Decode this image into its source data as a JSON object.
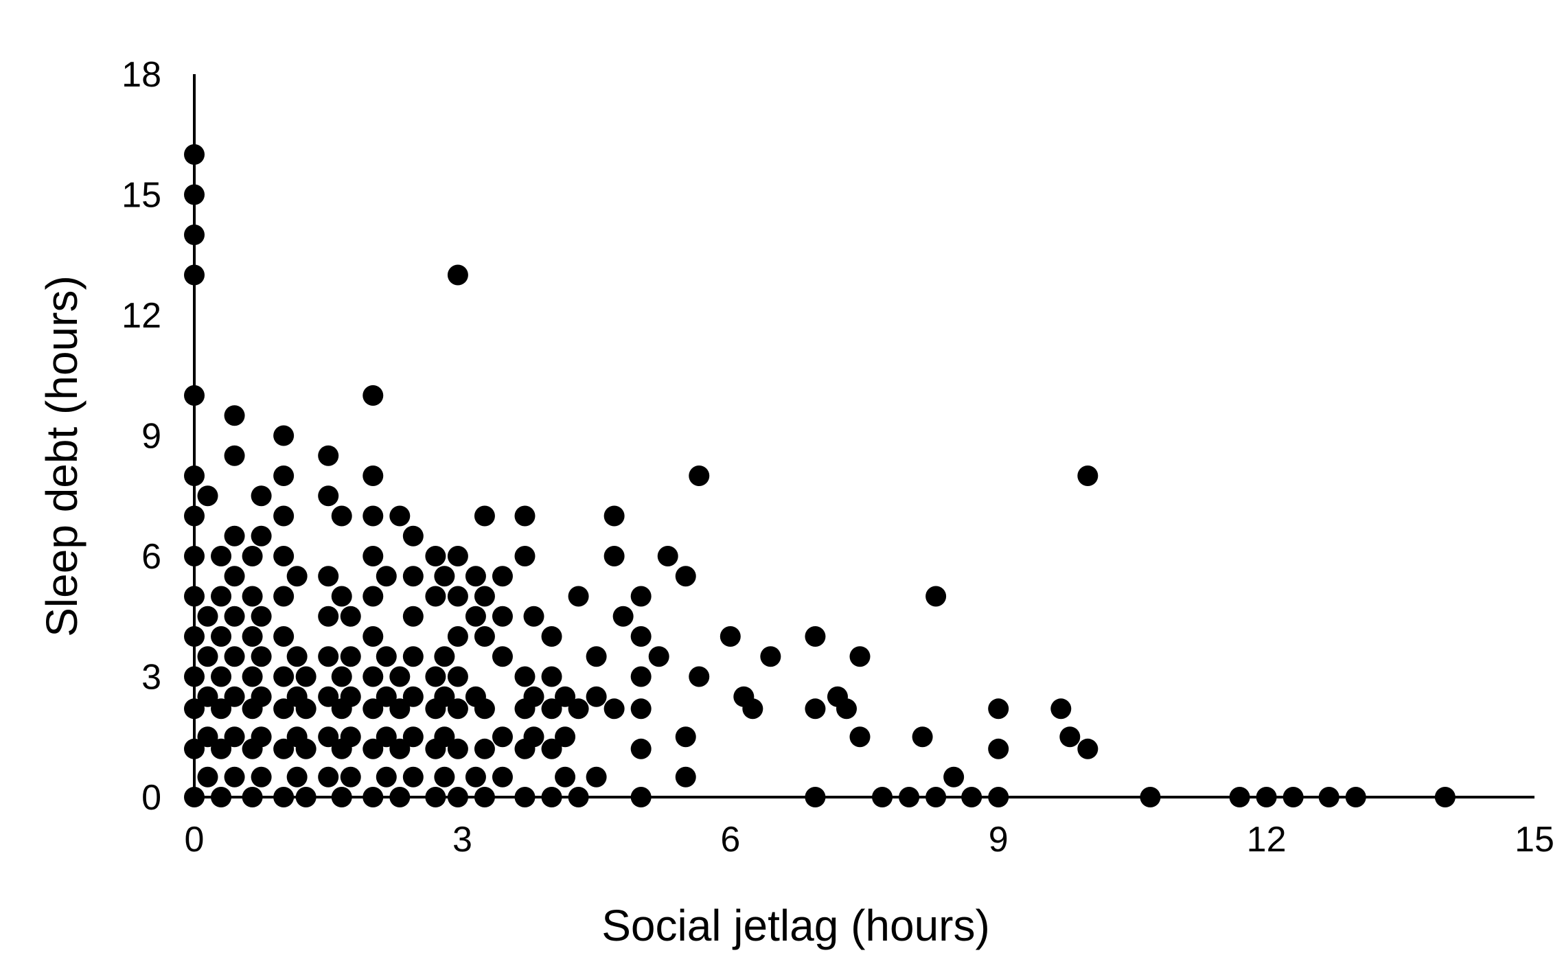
{
  "chart_data": {
    "type": "scatter",
    "title": "",
    "xlabel": "Social jetlag (hours)",
    "ylabel": "Sleep debt (hours)",
    "xlim": [
      0,
      15
    ],
    "ylim": [
      0,
      18
    ],
    "xticks": [
      "0",
      "3",
      "6",
      "9",
      "12",
      "15"
    ],
    "yticks": [
      "0",
      "3",
      "6",
      "9",
      "12",
      "15",
      "18"
    ],
    "grid": false,
    "legend": "none",
    "marker_color": "#000000",
    "points": [
      [
        0,
        16
      ],
      [
        0,
        15
      ],
      [
        0,
        14
      ],
      [
        0,
        13
      ],
      [
        0,
        10
      ],
      [
        0,
        8
      ],
      [
        0,
        7
      ],
      [
        0,
        6
      ],
      [
        0,
        5
      ],
      [
        0,
        4
      ],
      [
        0,
        3
      ],
      [
        0,
        2.2
      ],
      [
        0,
        1.2
      ],
      [
        0,
        0
      ],
      [
        0.15,
        7.5
      ],
      [
        0.15,
        4.5
      ],
      [
        0.15,
        3.5
      ],
      [
        0.15,
        2.5
      ],
      [
        0.15,
        1.5
      ],
      [
        0.15,
        0.5
      ],
      [
        0.3,
        6
      ],
      [
        0.3,
        5
      ],
      [
        0.3,
        4
      ],
      [
        0.3,
        3
      ],
      [
        0.3,
        2.2
      ],
      [
        0.3,
        1.2
      ],
      [
        0.3,
        0
      ],
      [
        0.45,
        9.5
      ],
      [
        0.45,
        8.5
      ],
      [
        0.45,
        6.5
      ],
      [
        0.45,
        5.5
      ],
      [
        0.45,
        4.5
      ],
      [
        0.45,
        3.5
      ],
      [
        0.45,
        2.5
      ],
      [
        0.45,
        1.5
      ],
      [
        0.45,
        0.5
      ],
      [
        0.65,
        6
      ],
      [
        0.65,
        5
      ],
      [
        0.65,
        4
      ],
      [
        0.65,
        3
      ],
      [
        0.65,
        2.2
      ],
      [
        0.65,
        1.2
      ],
      [
        0.65,
        0
      ],
      [
        0.75,
        7.5
      ],
      [
        0.75,
        6.5
      ],
      [
        0.75,
        4.5
      ],
      [
        0.75,
        3.5
      ],
      [
        0.75,
        2.5
      ],
      [
        0.75,
        1.5
      ],
      [
        0.75,
        0.5
      ],
      [
        1,
        9
      ],
      [
        1,
        8
      ],
      [
        1,
        7
      ],
      [
        1,
        6
      ],
      [
        1,
        5
      ],
      [
        1,
        4
      ],
      [
        1,
        3
      ],
      [
        1,
        2.2
      ],
      [
        1,
        1.2
      ],
      [
        1,
        0
      ],
      [
        1.15,
        5.5
      ],
      [
        1.15,
        3.5
      ],
      [
        1.15,
        2.5
      ],
      [
        1.15,
        1.5
      ],
      [
        1.15,
        0.5
      ],
      [
        1.25,
        3
      ],
      [
        1.25,
        2.2
      ],
      [
        1.25,
        1.2
      ],
      [
        1.25,
        0
      ],
      [
        1.5,
        8.5
      ],
      [
        1.5,
        7.5
      ],
      [
        1.5,
        5.5
      ],
      [
        1.5,
        4.5
      ],
      [
        1.5,
        3.5
      ],
      [
        1.5,
        2.5
      ],
      [
        1.5,
        1.5
      ],
      [
        1.5,
        0.5
      ],
      [
        1.65,
        7
      ],
      [
        1.65,
        5
      ],
      [
        1.65,
        3
      ],
      [
        1.65,
        2.2
      ],
      [
        1.65,
        1.2
      ],
      [
        1.65,
        0
      ],
      [
        1.75,
        4.5
      ],
      [
        1.75,
        3.5
      ],
      [
        1.75,
        2.5
      ],
      [
        1.75,
        1.5
      ],
      [
        1.75,
        0.5
      ],
      [
        2,
        10
      ],
      [
        2,
        8
      ],
      [
        2,
        7
      ],
      [
        2,
        6
      ],
      [
        2,
        5
      ],
      [
        2,
        4
      ],
      [
        2,
        3
      ],
      [
        2,
        2.2
      ],
      [
        2,
        1.2
      ],
      [
        2,
        0
      ],
      [
        2.15,
        5.5
      ],
      [
        2.15,
        3.5
      ],
      [
        2.15,
        2.5
      ],
      [
        2.15,
        1.5
      ],
      [
        2.15,
        0.5
      ],
      [
        2.3,
        7
      ],
      [
        2.3,
        3
      ],
      [
        2.3,
        2.2
      ],
      [
        2.3,
        1.2
      ],
      [
        2.3,
        0
      ],
      [
        2.45,
        6.5
      ],
      [
        2.45,
        5.5
      ],
      [
        2.45,
        4.5
      ],
      [
        2.45,
        3.5
      ],
      [
        2.45,
        2.5
      ],
      [
        2.45,
        1.5
      ],
      [
        2.45,
        0.5
      ],
      [
        2.7,
        6
      ],
      [
        2.7,
        5
      ],
      [
        2.7,
        3
      ],
      [
        2.7,
        2.2
      ],
      [
        2.7,
        1.2
      ],
      [
        2.7,
        0
      ],
      [
        2.8,
        5.5
      ],
      [
        2.8,
        3.5
      ],
      [
        2.8,
        2.5
      ],
      [
        2.8,
        1.5
      ],
      [
        2.8,
        0.5
      ],
      [
        2.95,
        13
      ],
      [
        2.95,
        6
      ],
      [
        2.95,
        5
      ],
      [
        2.95,
        4
      ],
      [
        2.95,
        3
      ],
      [
        2.95,
        2.2
      ],
      [
        2.95,
        1.2
      ],
      [
        2.95,
        0
      ],
      [
        3.15,
        5.5
      ],
      [
        3.15,
        4.5
      ],
      [
        3.15,
        2.5
      ],
      [
        3.15,
        0.5
      ],
      [
        3.25,
        7
      ],
      [
        3.25,
        5
      ],
      [
        3.25,
        4
      ],
      [
        3.25,
        2.2
      ],
      [
        3.25,
        1.2
      ],
      [
        3.25,
        0
      ],
      [
        3.45,
        5.5
      ],
      [
        3.45,
        4.5
      ],
      [
        3.45,
        3.5
      ],
      [
        3.45,
        1.5
      ],
      [
        3.45,
        0.5
      ],
      [
        3.7,
        7
      ],
      [
        3.7,
        6
      ],
      [
        3.7,
        3
      ],
      [
        3.7,
        2.2
      ],
      [
        3.7,
        1.2
      ],
      [
        3.7,
        0
      ],
      [
        3.8,
        4.5
      ],
      [
        3.8,
        2.5
      ],
      [
        3.8,
        1.5
      ],
      [
        4,
        4
      ],
      [
        4,
        3
      ],
      [
        4,
        2.2
      ],
      [
        4,
        1.2
      ],
      [
        4,
        0
      ],
      [
        4.15,
        2.5
      ],
      [
        4.15,
        1.5
      ],
      [
        4.15,
        0.5
      ],
      [
        4.3,
        5
      ],
      [
        4.3,
        2.2
      ],
      [
        4.3,
        0
      ],
      [
        4.5,
        3.5
      ],
      [
        4.5,
        2.5
      ],
      [
        4.5,
        0.5
      ],
      [
        4.7,
        7
      ],
      [
        4.7,
        6
      ],
      [
        4.7,
        2.2
      ],
      [
        4.8,
        4.5
      ],
      [
        5,
        5
      ],
      [
        5,
        4
      ],
      [
        5,
        3
      ],
      [
        5,
        2.2
      ],
      [
        5,
        1.2
      ],
      [
        5,
        0
      ],
      [
        5.2,
        3.5
      ],
      [
        5.3,
        6
      ],
      [
        5.5,
        5.5
      ],
      [
        5.5,
        1.5
      ],
      [
        5.5,
        0.5
      ],
      [
        5.65,
        8
      ],
      [
        5.65,
        3
      ],
      [
        6,
        4
      ],
      [
        6.15,
        2.5
      ],
      [
        6.25,
        2.2
      ],
      [
        6.45,
        3.5
      ],
      [
        6.95,
        4
      ],
      [
        6.95,
        2.2
      ],
      [
        6.95,
        0
      ],
      [
        7.2,
        2.5
      ],
      [
        7.3,
        2.2
      ],
      [
        7.45,
        3.5
      ],
      [
        7.45,
        1.5
      ],
      [
        7.7,
        0
      ],
      [
        8,
        0
      ],
      [
        8.15,
        1.5
      ],
      [
        8.3,
        5
      ],
      [
        8.3,
        0
      ],
      [
        8.5,
        0.5
      ],
      [
        8.7,
        0
      ],
      [
        9,
        2.2
      ],
      [
        9,
        1.2
      ],
      [
        9,
        0
      ],
      [
        9.7,
        2.2
      ],
      [
        9.8,
        1.5
      ],
      [
        10,
        8
      ],
      [
        10,
        1.2
      ],
      [
        10.7,
        0
      ],
      [
        11.7,
        0
      ],
      [
        12,
        0
      ],
      [
        12.3,
        0
      ],
      [
        12.7,
        0
      ],
      [
        13,
        0
      ],
      [
        14,
        0
      ]
    ]
  }
}
